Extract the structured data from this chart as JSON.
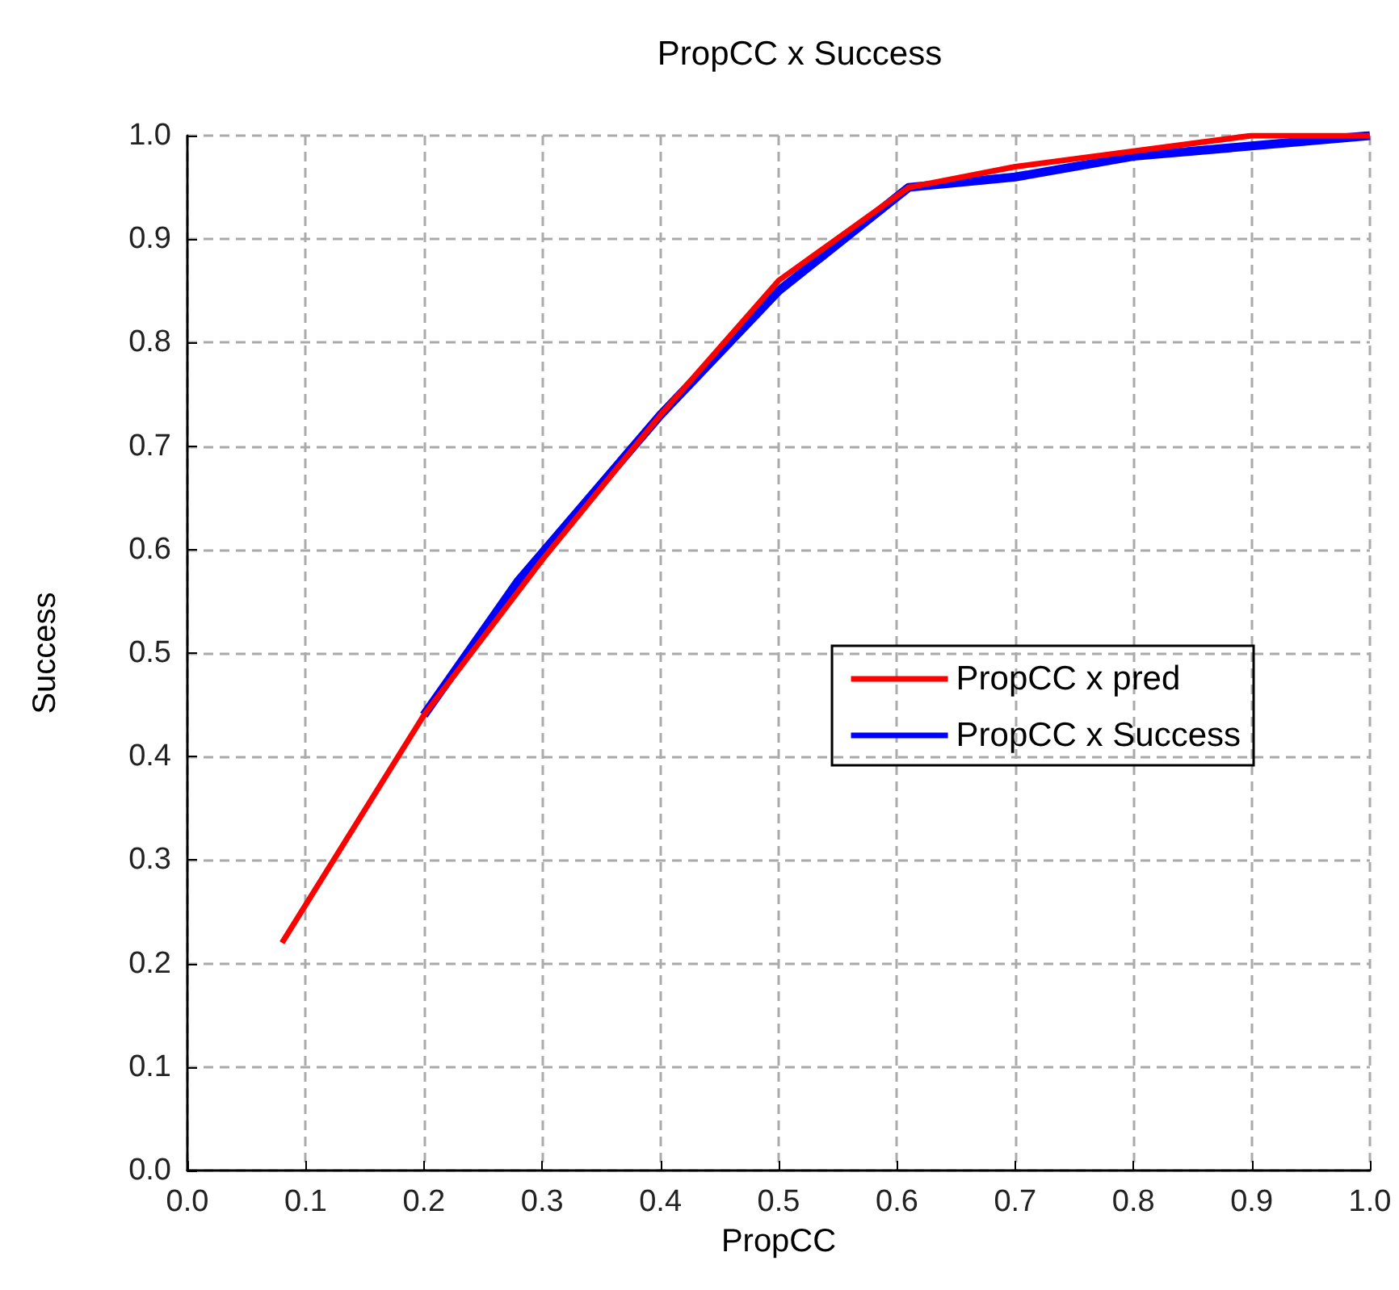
{
  "chart_data": {
    "type": "line",
    "title": "PropCC x Success",
    "xlabel": "PropCC",
    "ylabel": "Success",
    "xlim": [
      0,
      1
    ],
    "xticks": [
      {
        "value": 0,
        "label": "0.0"
      },
      0.1,
      0.2,
      0.3,
      0.4,
      0.5,
      0.6,
      0.7,
      0.8,
      0.9,
      {
        "value": 1,
        "label": "1.0"
      }
    ],
    "ylim": [
      0,
      1
    ],
    "yticks": [
      {
        "value": 0,
        "label": "0.0"
      },
      0.1,
      0.2,
      0.3,
      0.4,
      0.5,
      0.6,
      0.7,
      0.8,
      0.9,
      {
        "value": 1,
        "label": "1.0"
      }
    ],
    "grid": true,
    "legend": "right",
    "marker": "none",
    "line_style": "solid",
    "series": [
      {
        "name": "PropCC x pred",
        "color": "#ff0000",
        "x": [
          0.08,
          0.2,
          0.3,
          0.4,
          0.5,
          0.61,
          0.7,
          0.8,
          0.9,
          1.0
        ],
        "values": [
          0.22,
          0.44,
          0.59,
          0.73,
          0.86,
          0.95,
          0.97,
          0.985,
          1.0,
          1.0
        ]
      },
      {
        "name": "PropCC x Success",
        "color": "#0000ff",
        "x": [
          0.2,
          0.28,
          0.4,
          0.5,
          0.61,
          0.7,
          0.8,
          0.9,
          1.0
        ],
        "values": [
          0.44,
          0.57,
          0.73,
          0.85,
          0.95,
          0.96,
          0.98,
          0.99,
          1.0
        ]
      }
    ]
  }
}
